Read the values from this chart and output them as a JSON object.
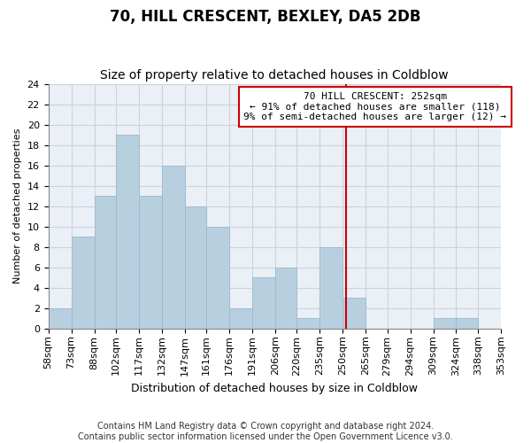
{
  "title": "70, HILL CRESCENT, BEXLEY, DA5 2DB",
  "subtitle": "Size of property relative to detached houses in Coldblow",
  "xlabel": "Distribution of detached houses by size in Coldblow",
  "ylabel": "Number of detached properties",
  "bin_edges": [
    58,
    73,
    88,
    102,
    117,
    132,
    147,
    161,
    176,
    191,
    206,
    220,
    235,
    250,
    265,
    279,
    294,
    309,
    324,
    338,
    353
  ],
  "bin_labels": [
    "58sqm",
    "73sqm",
    "88sqm",
    "102sqm",
    "117sqm",
    "132sqm",
    "147sqm",
    "161sqm",
    "176sqm",
    "191sqm",
    "206sqm",
    "220sqm",
    "235sqm",
    "250sqm",
    "265sqm",
    "279sqm",
    "294sqm",
    "309sqm",
    "324sqm",
    "338sqm",
    "353sqm"
  ],
  "counts": [
    2,
    9,
    13,
    19,
    13,
    16,
    12,
    10,
    2,
    5,
    6,
    1,
    8,
    3,
    0,
    0,
    0,
    1,
    1,
    0
  ],
  "bar_color": "#b8cfe0",
  "bar_edge_color": "#a0b8cc",
  "grid_color": "#c8d4e0",
  "ref_line_x": 252,
  "ref_line_color": "#cc0000",
  "annotation_box_color": "#cc0000",
  "annotation_line1": "70 HILL CRESCENT: 252sqm",
  "annotation_line2": "← 91% of detached houses are smaller (118)",
  "annotation_line3": "9% of semi-detached houses are larger (12) →",
  "ylim": [
    0,
    24
  ],
  "yticks": [
    0,
    2,
    4,
    6,
    8,
    10,
    12,
    14,
    16,
    18,
    20,
    22,
    24
  ],
  "footnote1": "Contains HM Land Registry data © Crown copyright and database right 2024.",
  "footnote2": "Contains public sector information licensed under the Open Government Licence v3.0.",
  "background_color": "#ffffff",
  "plot_background_color": "#eaf0f6",
  "title_fontsize": 12,
  "subtitle_fontsize": 10,
  "xlabel_fontsize": 9,
  "ylabel_fontsize": 8,
  "tick_fontsize": 8,
  "footnote_fontsize": 7,
  "annotation_fontsize": 8
}
